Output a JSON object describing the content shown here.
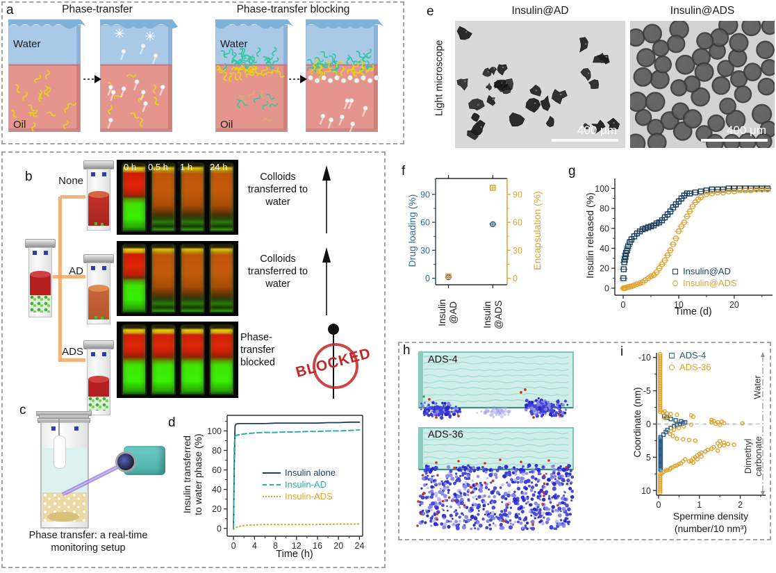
{
  "figure": {
    "panel_a": {
      "label": "a",
      "title_transfer": "Phase-transfer",
      "title_blocking": "Phase-transfer blocking",
      "water": "Water",
      "oil": "Oil"
    },
    "panel_b": {
      "label": "b",
      "branch_labels": [
        "None",
        "AD",
        "ADS"
      ],
      "time_labels": [
        "0 h",
        "0.5 h",
        "1 h",
        "24 h"
      ],
      "captions": [
        "Colloids transferred to water",
        "Colloids transferred to water",
        "Phase-transfer blocked"
      ],
      "blocked_stamp": "BLOCKED"
    },
    "panel_c": {
      "label": "c",
      "caption": "Phase transfer: a real-time monitoring setup"
    },
    "panel_d": {
      "label": "d"
    },
    "panel_e": {
      "label": "e",
      "title_left": "Insulin@AD",
      "title_right": "Insulin@ADS",
      "side_label": "Light microscope",
      "scale_bar": "400 μm"
    },
    "panel_f": {
      "label": "f"
    },
    "panel_g": {
      "label": "g"
    },
    "panel_h": {
      "label": "h",
      "tag_top": "ADS-4",
      "tag_bottom": "ADS-36"
    },
    "panel_i": {
      "label": "i"
    }
  },
  "colors": {
    "navy": "#1d3f5e",
    "navy_marker": "#2a5d8c",
    "teal": "#27b1a5",
    "orange": "#dfa32f",
    "blue_axis": "#2e6ba3",
    "stamp_red": "#c22626"
  },
  "chart_data": [
    {
      "id": "d",
      "type": "line",
      "xlabel": "Time (h)",
      "ylabel": "Insulin transferred to water phase (%)",
      "ylabel_lines": [
        "Insulin transferred",
        "to water phase (%)"
      ],
      "xlim": [
        -1.2,
        24.6
      ],
      "ylim": [
        -8,
        116
      ],
      "xticks": [
        0,
        4,
        8,
        12,
        16,
        20,
        24
      ],
      "xminor": [
        2,
        6,
        10,
        14,
        18,
        22
      ],
      "yticks": [
        0,
        20,
        40,
        60,
        80,
        100
      ],
      "yminor": [
        10,
        30,
        50,
        70,
        90,
        110
      ],
      "legend_position": "center-right",
      "series": [
        {
          "name": "Insulin alone",
          "style": "solid",
          "color": "#1d3f5e",
          "x": [
            0,
            0.15,
            0.3,
            0.5,
            1,
            2,
            3,
            4,
            6,
            8,
            10,
            12,
            14,
            16,
            18,
            20,
            22,
            24
          ],
          "y": [
            0,
            62,
            105,
            107,
            107.5,
            107.5,
            107.5,
            107.5,
            107.5,
            108,
            108,
            108,
            108,
            108,
            108.5,
            108.5,
            109,
            109
          ]
        },
        {
          "name": "Insulin-AD",
          "style": "dashed",
          "color": "#27b1a5",
          "x": [
            0,
            0.15,
            0.3,
            0.5,
            1,
            2,
            3,
            4,
            6,
            8,
            10,
            12,
            14,
            16,
            18,
            20,
            22,
            24
          ],
          "y": [
            0,
            85,
            94,
            95.5,
            96,
            97,
            97.5,
            98,
            98.5,
            98.5,
            99,
            99,
            99.5,
            99.5,
            100,
            100,
            100.5,
            101
          ]
        },
        {
          "name": "Insulin-ADS",
          "style": "dotted",
          "color": "#dfa32f",
          "x": [
            0,
            0.3,
            0.5,
            1,
            2,
            3,
            4,
            5,
            6,
            8,
            10,
            12,
            14,
            16,
            18,
            20,
            22,
            24
          ],
          "y": [
            -1,
            0.5,
            1,
            2,
            3,
            3.5,
            3.5,
            3.8,
            4,
            4,
            4,
            4,
            4,
            4,
            4.2,
            4.5,
            4.5,
            4.5
          ]
        }
      ]
    },
    {
      "id": "f",
      "type": "scatter",
      "categories": [
        "Insulin @AD",
        "Insulin @ADS"
      ],
      "category_x": [
        0.18,
        0.8
      ],
      "xlim": [
        0,
        1
      ],
      "ylabel_left": "Drug loading (%)",
      "ylabel_right": "Encapsulation (%)",
      "ylim": [
        -7,
        107
      ],
      "yticks": [
        0,
        30,
        60,
        90
      ],
      "yminor": [
        15,
        45,
        75
      ],
      "series": [
        {
          "name": "Drug loading (%)",
          "marker": "circle",
          "color": "#2a5d8c",
          "values": [
            1,
            58
          ]
        },
        {
          "name": "Encapsulation (%)",
          "marker": "square",
          "color": "#dfa32f",
          "values": [
            2,
            97
          ]
        }
      ]
    },
    {
      "id": "g",
      "type": "scatter",
      "xlabel": "Time (d)",
      "ylabel": "Insulin released (%)",
      "xlim": [
        -1.5,
        26.9
      ],
      "ylim": [
        -7,
        110
      ],
      "xticks": [
        0,
        10,
        20
      ],
      "xminor": [
        5,
        15,
        25
      ],
      "yticks": [
        0,
        20,
        40,
        60,
        80,
        100
      ],
      "yminor": [
        10,
        30,
        50,
        70,
        90
      ],
      "legend_position": "bottom-right",
      "series": [
        {
          "name": "Insulin@AD",
          "marker": "square",
          "color": "#1d3f5e",
          "x": [
            0.05,
            0.1,
            0.2,
            0.3,
            0.4,
            0.5,
            0.7,
            0.9,
            1.2,
            1.5,
            2,
            2.5,
            3,
            3.5,
            4,
            4.5,
            5,
            5.5,
            6,
            6.5,
            7,
            7.5,
            8,
            8.5,
            9,
            9.5,
            10,
            10.5,
            11,
            11.5,
            12,
            13,
            14,
            15,
            16,
            17,
            18,
            19,
            20,
            21,
            22,
            23,
            24,
            25,
            26
          ],
          "y": [
            10,
            19,
            26,
            29,
            32,
            35,
            38,
            42,
            46,
            49,
            52,
            55,
            57,
            59,
            60,
            61,
            62,
            63,
            65,
            66,
            68,
            71,
            74,
            77,
            81,
            84,
            87,
            90,
            93,
            95,
            95,
            96,
            97,
            98,
            99,
            99,
            99,
            100,
            100,
            100,
            100,
            100,
            100,
            100,
            100
          ]
        },
        {
          "name": "Insulin@ADS",
          "marker": "circle",
          "color": "#dfa32f",
          "x": [
            0.05,
            0.15,
            0.3,
            0.5,
            0.8,
            1.2,
            1.6,
            2,
            2.5,
            3,
            3.5,
            4,
            4.5,
            5,
            5.5,
            6,
            6.5,
            7,
            7.5,
            8,
            8.5,
            9,
            9.5,
            10,
            10.5,
            11,
            11.5,
            12,
            12.5,
            13,
            13.5,
            14,
            15,
            16,
            17,
            18,
            19,
            20,
            21,
            22,
            23,
            24,
            25,
            26
          ],
          "y": [
            0,
            0,
            0,
            0.5,
            1,
            1.5,
            2,
            3,
            4,
            5,
            6,
            8,
            10,
            12,
            13,
            16,
            20,
            24,
            28,
            33,
            38,
            44,
            50,
            57,
            62,
            66,
            72,
            77,
            82,
            86,
            89,
            91,
            94,
            95,
            96,
            96,
            97,
            97,
            98,
            98,
            98,
            99,
            99,
            99
          ]
        }
      ]
    },
    {
      "id": "i",
      "type": "scatter",
      "xlabel": "Spermine density (number/10 nm³)",
      "xlabel_lines": [
        "Spermine density",
        "(number/10 nm³)"
      ],
      "ylabel": "Coordinate (nm)",
      "xlim": [
        -0.05,
        2.62
      ],
      "ylim": [
        -10.7,
        10.7
      ],
      "invert_y": true,
      "xticks": [
        0,
        1,
        2
      ],
      "xminor": [
        0.5,
        1.5,
        2.5
      ],
      "yticks": [
        -10,
        -5,
        0,
        5,
        10
      ],
      "yminor": [
        -7.5,
        -2.5,
        2.5,
        7.5
      ],
      "ref_line_y": 0,
      "annotations": {
        "top_phase": "Water",
        "bottom_phase": "Dimethyl carbonate"
      },
      "series": [
        {
          "name": "ADS-4",
          "marker": "square",
          "color": "#2a5d8c",
          "wall_strips": [
            {
              "x": 0.05,
              "y_from": 2.0,
              "y_to": 7.0,
              "step": 0.22
            }
          ],
          "x": [
            0.12,
            0.18,
            0.22,
            0.3,
            0.38,
            0.45,
            0.52,
            0.6,
            0.65,
            0.55,
            0.42,
            0.3,
            0.2,
            0.14
          ],
          "y": [
            1.6,
            1.2,
            0.9,
            0.6,
            0.35,
            0.15,
            0,
            -0.1,
            -0.25,
            -0.4,
            -0.55,
            -0.75,
            -0.95,
            -1.2
          ]
        },
        {
          "name": "ADS-36",
          "marker": "circle",
          "color": "#dfa32f",
          "wall_strips": [
            {
              "x": 0.04,
              "y_from": -10.5,
              "y_to": -1.8,
              "step": 0.28
            },
            {
              "x": 0.04,
              "y_from": 7.5,
              "y_to": 10.5,
              "step": 0.28
            }
          ],
          "x": [
            0.1,
            0.15,
            0.2,
            0.3,
            0.45,
            0.25,
            0.15,
            0.8,
            0.85,
            1.3,
            1.35,
            1.3,
            1.45,
            1.55,
            1.6,
            1.4,
            1.5,
            2.05,
            0.8,
            0.62,
            0.5,
            0.38,
            0.3,
            0.28,
            0.35,
            0.45,
            0.6,
            0.75,
            0.9,
            1.5,
            1.6,
            1.45,
            1.7,
            1.85,
            1.6,
            1.5,
            1.35,
            1.3,
            1.2,
            1.45,
            1.15,
            1.05,
            1.0,
            0.95,
            1.05,
            0.9,
            0.85,
            0.95,
            0.8,
            0.75,
            0.85,
            0.65,
            0.6,
            0.55,
            0.5,
            0.45,
            0.4,
            0.35,
            0.3,
            0.28,
            0.22,
            0.18,
            0.12,
            0.08
          ],
          "y": [
            -1.7,
            -1.9,
            -1.6,
            -1.5,
            -1.4,
            -1.1,
            -0.9,
            -1.3,
            -1.1,
            -0.6,
            -0.45,
            -0.3,
            -0.25,
            -0.35,
            -0.15,
            -0.05,
            0.1,
            -0.1,
            0.1,
            0.35,
            0.6,
            0.85,
            1.1,
            1.5,
            1.8,
            2.2,
            2.3,
            2.4,
            2.5,
            2.6,
            2.8,
            2.9,
            3.0,
            3.1,
            3.2,
            3.3,
            3.5,
            3.7,
            3.9,
            4.0,
            4.1,
            4.3,
            4.5,
            4.7,
            4.9,
            5.0,
            5.2,
            5.3,
            5.5,
            5.6,
            5.8,
            5.3,
            5.6,
            5.9,
            6.0,
            6.2,
            6.3,
            6.5,
            6.6,
            6.8,
            6.9,
            7.0,
            7.2,
            7.4
          ]
        }
      ]
    }
  ]
}
